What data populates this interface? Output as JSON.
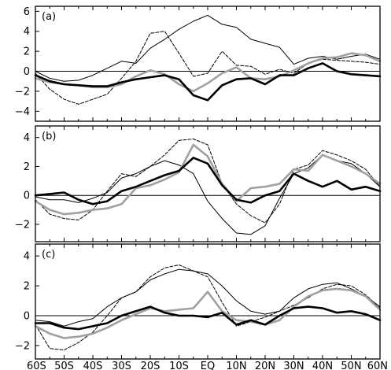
{
  "chart_data": [
    {
      "type": "line",
      "panel_label": "(a)",
      "ylim": [
        -5,
        6.5
      ],
      "yticks": [
        -4,
        -2,
        0,
        2,
        4,
        6
      ],
      "x": [
        -60,
        -55,
        -50,
        -45,
        -40,
        -35,
        -30,
        -25,
        -20,
        -15,
        -10,
        -5,
        0,
        5,
        10,
        15,
        20,
        25,
        30,
        35,
        40,
        45,
        50,
        55,
        60
      ],
      "series": [
        {
          "style": "thin-solid",
          "values": [
            0.0,
            -0.7,
            -1.0,
            -0.9,
            -0.4,
            0.3,
            1.0,
            0.8,
            2.3,
            3.2,
            4.2,
            5.0,
            5.6,
            4.7,
            4.4,
            3.2,
            2.8,
            2.4,
            0.7,
            1.3,
            1.5,
            1.2,
            1.5,
            1.7,
            1.2
          ]
        },
        {
          "style": "dashed",
          "values": [
            -0.2,
            -1.8,
            -2.8,
            -3.3,
            -2.8,
            -2.3,
            -0.7,
            1.0,
            3.8,
            4.0,
            1.8,
            -0.5,
            -0.2,
            2.0,
            0.6,
            0.5,
            -0.3,
            0.2,
            -0.2,
            0.8,
            1.2,
            1.1,
            1.0,
            0.9,
            0.7
          ]
        },
        {
          "style": "thick-black",
          "values": [
            -0.4,
            -1.0,
            -1.3,
            -1.4,
            -1.5,
            -1.5,
            -1.1,
            -0.8,
            -0.6,
            -0.4,
            -0.8,
            -2.4,
            -2.9,
            -1.4,
            -0.8,
            -0.7,
            -1.3,
            -0.4,
            -0.4,
            0.3,
            0.8,
            0.0,
            -0.3,
            -0.4,
            -0.5
          ]
        },
        {
          "style": "thick-gray",
          "values": [
            -0.7,
            -1.1,
            -1.3,
            -1.4,
            -1.6,
            -1.6,
            -1.3,
            -0.5,
            0.1,
            -0.3,
            -1.3,
            -2.0,
            -1.2,
            -0.2,
            0.4,
            -0.7,
            -0.8,
            -0.5,
            0.1,
            0.8,
            1.3,
            1.4,
            1.8,
            1.6,
            1.0
          ]
        }
      ]
    },
    {
      "type": "line",
      "panel_label": "(b)",
      "ylim": [
        -3.2,
        4.8
      ],
      "yticks": [
        -2,
        0,
        2,
        4
      ],
      "x": [
        -60,
        -55,
        -50,
        -45,
        -40,
        -35,
        -30,
        -25,
        -20,
        -15,
        -10,
        -5,
        0,
        5,
        10,
        15,
        20,
        25,
        30,
        35,
        40,
        45,
        50,
        55,
        60
      ],
      "series": [
        {
          "style": "thin-solid",
          "values": [
            -0.1,
            -0.3,
            -0.3,
            -0.5,
            -0.2,
            0.2,
            1.2,
            1.5,
            2.0,
            2.4,
            2.1,
            1.5,
            -0.4,
            -1.6,
            -2.6,
            -2.7,
            -2.1,
            -0.2,
            1.5,
            1.9,
            2.8,
            2.4,
            2.2,
            1.5,
            0.6
          ]
        },
        {
          "style": "dashed",
          "values": [
            -0.3,
            -1.3,
            -1.6,
            -1.7,
            -1.0,
            0.3,
            1.5,
            1.3,
            2.0,
            2.8,
            3.8,
            3.9,
            3.5,
            0.8,
            -0.6,
            -1.4,
            -1.9,
            -0.6,
            1.8,
            2.1,
            3.1,
            2.8,
            2.4,
            1.8,
            0.6
          ]
        },
        {
          "style": "thick-black",
          "values": [
            0.0,
            0.1,
            0.2,
            -0.3,
            -0.6,
            -0.4,
            0.3,
            0.6,
            1.0,
            1.4,
            1.7,
            2.6,
            2.2,
            0.7,
            -0.3,
            -0.5,
            0.0,
            0.3,
            1.5,
            1.0,
            0.6,
            1.0,
            0.4,
            0.6,
            0.3
          ]
        },
        {
          "style": "thick-gray",
          "values": [
            -0.4,
            -1.0,
            -1.3,
            -1.2,
            -1.0,
            -0.9,
            -0.6,
            0.5,
            0.7,
            1.1,
            1.6,
            3.5,
            2.7,
            0.8,
            -0.4,
            0.5,
            0.6,
            0.8,
            1.8,
            1.7,
            2.8,
            2.4,
            2.0,
            1.5,
            0.8
          ]
        }
      ]
    },
    {
      "type": "line",
      "panel_label": "(c)",
      "ylim": [
        -2.9,
        4.8
      ],
      "yticks": [
        -2,
        0,
        2,
        4
      ],
      "xticklabels": [
        "60S",
        "50S",
        "40S",
        "30S",
        "20S",
        "10S",
        "EQ",
        "10N",
        "20N",
        "30N",
        "40N",
        "50N",
        "60N"
      ],
      "x": [
        -60,
        -55,
        -50,
        -45,
        -40,
        -35,
        -30,
        -25,
        -20,
        -15,
        -10,
        -5,
        0,
        5,
        10,
        15,
        20,
        25,
        30,
        35,
        40,
        45,
        50,
        55,
        60
      ],
      "series": [
        {
          "style": "thin-solid",
          "values": [
            -0.3,
            -0.4,
            -0.7,
            -0.4,
            -0.2,
            0.6,
            1.2,
            1.6,
            2.4,
            2.8,
            3.1,
            3.0,
            2.8,
            2.0,
            1.0,
            0.3,
            0.1,
            0.3,
            1.2,
            1.8,
            2.1,
            2.2,
            1.8,
            1.3,
            0.6
          ]
        },
        {
          "style": "dashed",
          "values": [
            -0.6,
            -2.2,
            -2.3,
            -1.8,
            -1.1,
            0.0,
            1.2,
            1.6,
            2.6,
            3.2,
            3.4,
            3.0,
            2.6,
            0.9,
            -0.7,
            -0.4,
            -0.1,
            0.3,
            0.7,
            1.2,
            1.8,
            2.1,
            2.0,
            1.4,
            0.5
          ]
        },
        {
          "style": "thick-black",
          "values": [
            -0.5,
            -0.5,
            -0.8,
            -0.9,
            -0.7,
            -0.5,
            0.0,
            0.3,
            0.6,
            0.2,
            0.0,
            0.0,
            -0.1,
            0.2,
            -0.6,
            -0.3,
            -0.6,
            0.0,
            0.5,
            0.6,
            0.5,
            0.2,
            0.3,
            0.1,
            -0.3
          ]
        },
        {
          "style": "thick-gray",
          "values": [
            -0.7,
            -1.2,
            -1.5,
            -1.4,
            -1.2,
            -0.8,
            -0.3,
            0.1,
            0.5,
            0.3,
            0.4,
            0.5,
            1.6,
            0.3,
            -0.3,
            -0.4,
            -0.6,
            -0.3,
            0.6,
            1.3,
            1.7,
            1.8,
            1.7,
            1.3,
            0.4
          ]
        }
      ]
    }
  ]
}
